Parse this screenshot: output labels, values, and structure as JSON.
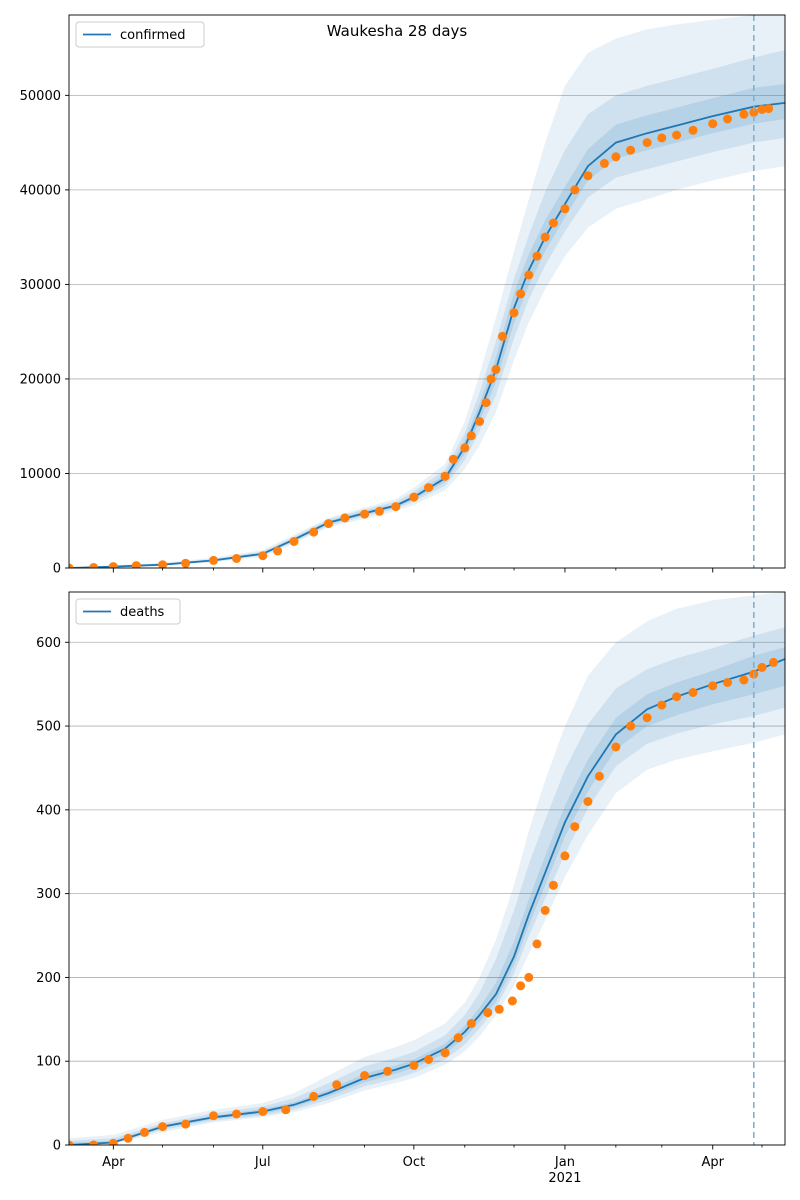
{
  "figure": {
    "title": "Waukesha 28 days"
  },
  "colors": {
    "line": "#1f77b4",
    "band": "#1f77b4",
    "points": "#ff7f0e",
    "grid": "#b0b0b0",
    "forecast_line": "#7fb1d6"
  },
  "x_axis": {
    "ticks": [
      {
        "date": "2020-04-01",
        "label": "Apr",
        "sublabel": ""
      },
      {
        "date": "2020-07-01",
        "label": "Jul",
        "sublabel": ""
      },
      {
        "date": "2020-10-01",
        "label": "Oct",
        "sublabel": ""
      },
      {
        "date": "2021-01-01",
        "label": "Jan",
        "sublabel": "2021"
      },
      {
        "date": "2021-04-01",
        "label": "Apr",
        "sublabel": ""
      }
    ],
    "minor_ticks": [
      "2020-05-01",
      "2020-06-01",
      "2020-08-01",
      "2020-09-01",
      "2020-11-01",
      "2020-12-01",
      "2021-02-01",
      "2021-03-01",
      "2021-05-01"
    ],
    "range": [
      "2020-03-05",
      "2021-05-15"
    ]
  },
  "chart_data": [
    {
      "type": "line",
      "legend": "confirmed",
      "legend_position": "top-left",
      "grid": "y",
      "ylim": [
        0,
        58500
      ],
      "yticks": [
        0,
        10000,
        20000,
        30000,
        40000,
        50000
      ],
      "forecast_date": "2021-04-26",
      "fit": {
        "x": [
          "2020-03-05",
          "2020-04-01",
          "2020-05-01",
          "2020-06-01",
          "2020-07-01",
          "2020-07-20",
          "2020-08-10",
          "2020-09-01",
          "2020-09-20",
          "2020-10-01",
          "2020-10-20",
          "2020-11-01",
          "2020-11-10",
          "2020-11-20",
          "2020-12-01",
          "2020-12-10",
          "2020-12-20",
          "2021-01-01",
          "2021-01-15",
          "2021-02-01",
          "2021-02-20",
          "2021-03-10",
          "2021-04-01",
          "2021-04-26",
          "2021-05-15"
        ],
        "y": [
          0,
          150,
          350,
          800,
          1500,
          3000,
          4800,
          5800,
          6600,
          7500,
          9500,
          12800,
          16500,
          21000,
          27500,
          31500,
          35000,
          38500,
          42500,
          45000,
          46000,
          46800,
          47800,
          48800,
          49200
        ],
        "bands": [
          {
            "opacity": 0.1,
            "lower": [
              0,
              100,
              250,
              600,
              1200,
              2600,
              4300,
              5200,
              6000,
              6700,
              8200,
              10500,
              13000,
              16500,
              22000,
              26000,
              29500,
              33000,
              36000,
              38000,
              39000,
              40000,
              41000,
              42000,
              42500
            ],
            "upper": [
              0,
              300,
              550,
              1100,
              1900,
              3500,
              5300,
              6400,
              7300,
              8500,
              11000,
              15500,
              20500,
              26500,
              33500,
              39000,
              45000,
              51000,
              54500,
              56000,
              57000,
              57500,
              58000,
              58500,
              59000
            ]
          },
          {
            "opacity": 0.12,
            "lower": [
              0,
              120,
              290,
              680,
              1320,
              2750,
              4500,
              5450,
              6250,
              7000,
              8700,
              11400,
              14500,
              18300,
              24300,
              28400,
              32000,
              35600,
              39200,
              41300,
              42200,
              43000,
              44000,
              45000,
              45500
            ],
            "upper": [
              0,
              240,
              470,
              950,
              1750,
              3300,
              5150,
              6200,
              7000,
              8100,
              10400,
              14300,
              18600,
              24000,
              30600,
              35200,
              39800,
              44200,
              48000,
              50000,
              51000,
              51800,
              52800,
              54000,
              54800
            ]
          },
          {
            "opacity": 0.14,
            "lower": [
              0,
              135,
              320,
              740,
              1410,
              2870,
              4650,
              5620,
              6420,
              7250,
              9100,
              12100,
              15500,
              19700,
              25900,
              29900,
              33500,
              37100,
              41000,
              43300,
              44200,
              45000,
              46000,
              47000,
              47500
            ],
            "upper": [
              0,
              190,
              400,
              860,
              1610,
              3140,
              4970,
              6000,
              6790,
              7750,
              9900,
              13500,
              17400,
              22300,
              29100,
              33200,
              36800,
              40300,
              44300,
              46900,
              47900,
              48700,
              49700,
              50800,
              51200
            ]
          }
        ]
      },
      "points": {
        "x": [
          "2020-03-05",
          "2020-03-20",
          "2020-04-01",
          "2020-04-15",
          "2020-05-01",
          "2020-05-15",
          "2020-06-01",
          "2020-06-15",
          "2020-07-01",
          "2020-07-10",
          "2020-07-20",
          "2020-08-01",
          "2020-08-10",
          "2020-08-20",
          "2020-09-01",
          "2020-09-10",
          "2020-09-20",
          "2020-10-01",
          "2020-10-10",
          "2020-10-20",
          "2020-10-25",
          "2020-11-01",
          "2020-11-05",
          "2020-11-10",
          "2020-11-14",
          "2020-11-17",
          "2020-11-20",
          "2020-11-24",
          "2020-12-01",
          "2020-12-05",
          "2020-12-10",
          "2020-12-15",
          "2020-12-20",
          "2020-12-25",
          "2021-01-01",
          "2021-01-07",
          "2021-01-15",
          "2021-01-25",
          "2021-02-01",
          "2021-02-10",
          "2021-02-20",
          "2021-03-01",
          "2021-03-10",
          "2021-03-20",
          "2021-04-01",
          "2021-04-10",
          "2021-04-20",
          "2021-04-26",
          "2021-05-01",
          "2021-05-05"
        ],
        "y": [
          0,
          50,
          150,
          250,
          350,
          500,
          800,
          1000,
          1300,
          1800,
          2800,
          3800,
          4700,
          5300,
          5700,
          6000,
          6500,
          7500,
          8500,
          9700,
          11500,
          12700,
          14000,
          15500,
          17500,
          20000,
          21000,
          24500,
          27000,
          29000,
          31000,
          33000,
          35000,
          36500,
          38000,
          40000,
          41500,
          42800,
          43500,
          44200,
          45000,
          45500,
          45800,
          46300,
          47000,
          47500,
          48000,
          48200,
          48500,
          48600
        ]
      }
    },
    {
      "type": "line",
      "legend": "deaths",
      "legend_position": "top-left",
      "grid": "y",
      "ylim": [
        0,
        660
      ],
      "yticks": [
        0,
        100,
        200,
        300,
        400,
        500,
        600
      ],
      "forecast_date": "2021-04-26",
      "fit": {
        "x": [
          "2020-03-05",
          "2020-04-01",
          "2020-05-01",
          "2020-06-01",
          "2020-07-01",
          "2020-07-20",
          "2020-08-10",
          "2020-09-01",
          "2020-09-20",
          "2020-10-01",
          "2020-10-20",
          "2020-11-01",
          "2020-11-10",
          "2020-11-20",
          "2020-12-01",
          "2020-12-10",
          "2020-12-20",
          "2021-01-01",
          "2021-01-15",
          "2021-02-01",
          "2021-02-20",
          "2021-03-10",
          "2021-04-01",
          "2021-04-26",
          "2021-05-15"
        ],
        "y": [
          0,
          3,
          22,
          33,
          40,
          48,
          62,
          80,
          90,
          97,
          115,
          135,
          155,
          180,
          225,
          275,
          325,
          385,
          440,
          490,
          520,
          535,
          550,
          565,
          580
        ],
        "bands": [
          {
            "opacity": 0.1,
            "lower": [
              0,
              1,
              15,
              27,
              33,
              39,
              50,
              65,
              74,
              80,
              96,
              112,
              130,
              155,
              190,
              228,
              268,
              320,
              370,
              420,
              448,
              460,
              470,
              480,
              490
            ],
            "upper": [
              8,
              12,
              30,
              42,
              50,
              62,
              83,
              105,
              117,
              125,
              145,
              170,
              200,
              245,
              310,
              375,
              435,
              500,
              560,
              600,
              625,
              640,
              650,
              656,
              660
            ]
          },
          {
            "opacity": 0.12,
            "lower": [
              0,
              2,
              18,
              29,
              35,
              42,
              54,
              70,
              79,
              86,
              102,
              120,
              139,
              164,
              205,
              249,
              294,
              347,
              402,
              452,
              479,
              491,
              502,
              512,
              522
            ],
            "upper": [
              5,
              8,
              26,
              38,
              46,
              56,
              74,
              94,
              104,
              111,
              131,
              155,
              182,
              222,
              280,
              335,
              388,
              448,
              502,
              545,
              568,
              581,
              593,
              608,
              618
            ]
          },
          {
            "opacity": 0.14,
            "lower": [
              0,
              2,
              20,
              31,
              37,
              45,
              58,
              75,
              85,
              92,
              109,
              128,
              147,
              171,
              215,
              262,
              310,
              368,
              422,
              472,
              500,
              513,
              526,
              538,
              548
            ],
            "upper": [
              3,
              5,
              24,
              35,
              43,
              51,
              66,
              85,
              95,
              102,
              121,
              142,
              164,
              194,
              243,
              293,
              345,
              405,
              460,
              510,
              538,
              552,
              566,
              584,
              594
            ]
          }
        ]
      },
      "points": {
        "x": [
          "2020-03-05",
          "2020-03-20",
          "2020-04-01",
          "2020-04-10",
          "2020-04-20",
          "2020-05-01",
          "2020-05-15",
          "2020-06-01",
          "2020-06-15",
          "2020-07-01",
          "2020-07-15",
          "2020-08-01",
          "2020-08-15",
          "2020-09-01",
          "2020-09-15",
          "2020-10-01",
          "2020-10-10",
          "2020-10-20",
          "2020-10-28",
          "2020-11-05",
          "2020-11-15",
          "2020-11-22",
          "2020-11-30",
          "2020-12-05",
          "2020-12-10",
          "2020-12-15",
          "2020-12-20",
          "2020-12-25",
          "2021-01-01",
          "2021-01-07",
          "2021-01-15",
          "2021-01-22",
          "2021-02-01",
          "2021-02-10",
          "2021-02-20",
          "2021-03-01",
          "2021-03-10",
          "2021-03-20",
          "2021-04-01",
          "2021-04-10",
          "2021-04-20",
          "2021-04-26",
          "2021-05-01",
          "2021-05-08"
        ],
        "y": [
          0,
          0,
          2,
          8,
          15,
          22,
          25,
          35,
          37,
          40,
          42,
          58,
          72,
          83,
          88,
          95,
          102,
          110,
          128,
          145,
          158,
          162,
          172,
          190,
          200,
          240,
          280,
          310,
          345,
          380,
          410,
          440,
          475,
          500,
          510,
          525,
          535,
          540,
          548,
          552,
          555,
          562,
          570,
          576
        ]
      }
    }
  ]
}
